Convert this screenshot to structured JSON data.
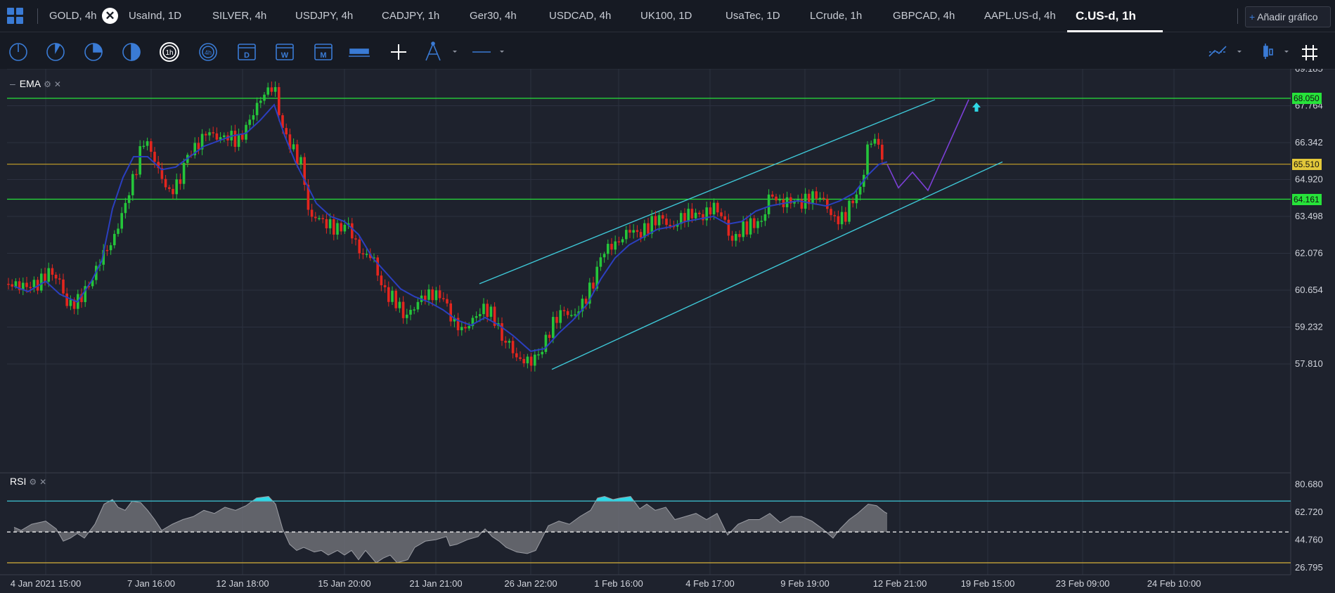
{
  "tabs": [
    "GOLD, 4h",
    "UsaInd, 1D",
    "SILVER, 4h",
    "USDJPY, 4h",
    "CADJPY, 1h",
    "Ger30, 4h",
    "USDCAD, 4h",
    "UK100, 1D",
    "UsaTec, 1D",
    "LCrude, 1h",
    "GBPCAD, 4h",
    "AAPL.US-d, 4h",
    "C.US-d, 1h"
  ],
  "active_tab": "C.US-d, 1h",
  "add_chart_label": "Añadir gráfico",
  "toolbar": {
    "timeframe_icons": [
      "1m",
      "5m",
      "15m",
      "30m",
      "1h",
      "4h",
      "D",
      "W",
      "M"
    ],
    "tool_icons": [
      "bar-width-icon",
      "crosshair-icon",
      "drawing-tool-icon",
      "line-tool-icon",
      "indicators-icon",
      "chart-type-icon",
      "grid-layout-icon"
    ]
  },
  "main_pane": {
    "indicator_label": "EMA",
    "price_ticks": [
      "69.185",
      "67.764",
      "66.342",
      "64.920",
      "63.498",
      "62.076",
      "60.654",
      "59.232",
      "57.810"
    ],
    "level_tags": [
      {
        "value": "68.050",
        "color": "#27e33a"
      },
      {
        "value": "65.510",
        "color": "#e3c83a"
      },
      {
        "value": "64.161",
        "color": "#27e33a"
      }
    ]
  },
  "rsi_pane": {
    "indicator_label": "RSI",
    "ticks": [
      "80.680",
      "62.720",
      "44.760",
      "26.795"
    ]
  },
  "time_axis": [
    "4 Jan 2021 15:00",
    "7 Jan 16:00",
    "12 Jan 18:00",
    "15 Jan 20:00",
    "21 Jan 21:00",
    "26 Jan 22:00",
    "1 Feb 16:00",
    "4 Feb 17:00",
    "9 Feb 19:00",
    "12 Feb 21:00",
    "19 Feb 15:00",
    "23 Feb 09:00",
    "24 Feb 10:00"
  ],
  "chart_data": {
    "type": "candlestick",
    "price_ylim": [
      57.0,
      69.7
    ],
    "close_path": [
      [
        0,
        60.9
      ],
      [
        25,
        60.8
      ],
      [
        45,
        60.9
      ],
      [
        60,
        61.4
      ],
      [
        75,
        61.0
      ],
      [
        85,
        60.1
      ],
      [
        100,
        60.2
      ],
      [
        120,
        61.0
      ],
      [
        135,
        62.0
      ],
      [
        150,
        62.5
      ],
      [
        165,
        63.7
      ],
      [
        180,
        65.0
      ],
      [
        195,
        66.5
      ],
      [
        205,
        66.0
      ],
      [
        215,
        65.3
      ],
      [
        230,
        64.4
      ],
      [
        245,
        64.8
      ],
      [
        255,
        65.8
      ],
      [
        270,
        66.2
      ],
      [
        285,
        66.8
      ],
      [
        300,
        66.5
      ],
      [
        315,
        66.6
      ],
      [
        330,
        66.4
      ],
      [
        345,
        67.2
      ],
      [
        360,
        68.0
      ],
      [
        375,
        68.5
      ],
      [
        382,
        68.3
      ],
      [
        390,
        67.0
      ],
      [
        400,
        66.4
      ],
      [
        410,
        65.9
      ],
      [
        420,
        65.5
      ],
      [
        430,
        63.4
      ],
      [
        440,
        63.5
      ],
      [
        455,
        63.2
      ],
      [
        470,
        63.0
      ],
      [
        485,
        63.2
      ],
      [
        495,
        62.5
      ],
      [
        505,
        62.0
      ],
      [
        520,
        62.0
      ],
      [
        530,
        61.0
      ],
      [
        540,
        60.5
      ],
      [
        555,
        60.2
      ],
      [
        565,
        59.6
      ],
      [
        580,
        60.0
      ],
      [
        590,
        60.4
      ],
      [
        605,
        60.5
      ],
      [
        620,
        60.4
      ],
      [
        635,
        59.4
      ],
      [
        650,
        59.1
      ],
      [
        665,
        59.6
      ],
      [
        680,
        60.0
      ],
      [
        695,
        59.5
      ],
      [
        705,
        58.7
      ],
      [
        715,
        58.6
      ],
      [
        725,
        58.0
      ],
      [
        745,
        57.9
      ],
      [
        760,
        58.3
      ],
      [
        775,
        59.3
      ],
      [
        790,
        59.9
      ],
      [
        805,
        59.6
      ],
      [
        820,
        60.2
      ],
      [
        835,
        61.0
      ],
      [
        845,
        62.0
      ],
      [
        855,
        62.3
      ],
      [
        870,
        62.5
      ],
      [
        885,
        63.0
      ],
      [
        900,
        62.8
      ],
      [
        915,
        63.2
      ],
      [
        930,
        63.5
      ],
      [
        945,
        63.0
      ],
      [
        960,
        63.5
      ],
      [
        975,
        63.6
      ],
      [
        990,
        63.5
      ],
      [
        1005,
        63.9
      ],
      [
        1020,
        63.4
      ],
      [
        1030,
        62.5
      ],
      [
        1045,
        63.0
      ],
      [
        1060,
        63.2
      ],
      [
        1075,
        63.3
      ],
      [
        1085,
        64.4
      ],
      [
        1100,
        64.0
      ],
      [
        1115,
        64.1
      ],
      [
        1130,
        64.0
      ],
      [
        1145,
        64.3
      ],
      [
        1160,
        64.2
      ],
      [
        1175,
        63.4
      ],
      [
        1190,
        63.4
      ],
      [
        1200,
        64.0
      ],
      [
        1215,
        64.6
      ],
      [
        1225,
        66.3
      ],
      [
        1235,
        66.5
      ],
      [
        1245,
        65.8
      ],
      [
        1252,
        65.5
      ]
    ],
    "ema_path": [
      [
        10,
        60.8
      ],
      [
        30,
        60.6
      ],
      [
        55,
        61.0
      ],
      [
        75,
        60.5
      ],
      [
        100,
        60.2
      ],
      [
        120,
        61.0
      ],
      [
        135,
        61.8
      ],
      [
        150,
        63.8
      ],
      [
        165,
        65.0
      ],
      [
        180,
        65.8
      ],
      [
        200,
        65.8
      ],
      [
        220,
        65.3
      ],
      [
        240,
        65.4
      ],
      [
        260,
        65.8
      ],
      [
        280,
        66.2
      ],
      [
        300,
        66.4
      ],
      [
        320,
        66.6
      ],
      [
        340,
        66.7
      ],
      [
        360,
        67.2
      ],
      [
        380,
        67.8
      ],
      [
        395,
        66.6
      ],
      [
        410,
        65.6
      ],
      [
        425,
        64.8
      ],
      [
        440,
        64.0
      ],
      [
        460,
        63.5
      ],
      [
        480,
        63.3
      ],
      [
        500,
        62.8
      ],
      [
        520,
        61.9
      ],
      [
        540,
        61.3
      ],
      [
        560,
        60.7
      ],
      [
        580,
        60.4
      ],
      [
        600,
        60.2
      ],
      [
        620,
        59.9
      ],
      [
        640,
        59.5
      ],
      [
        660,
        59.3
      ],
      [
        680,
        59.6
      ],
      [
        700,
        59.3
      ],
      [
        720,
        58.9
      ],
      [
        745,
        58.3
      ],
      [
        765,
        58.4
      ],
      [
        785,
        59.0
      ],
      [
        805,
        59.5
      ],
      [
        825,
        60.1
      ],
      [
        845,
        61.1
      ],
      [
        865,
        61.9
      ],
      [
        885,
        62.4
      ],
      [
        905,
        62.7
      ],
      [
        925,
        63.0
      ],
      [
        945,
        63.1
      ],
      [
        965,
        63.3
      ],
      [
        985,
        63.4
      ],
      [
        1005,
        63.5
      ],
      [
        1025,
        63.2
      ],
      [
        1045,
        63.3
      ],
      [
        1065,
        63.7
      ],
      [
        1085,
        63.9
      ],
      [
        1105,
        64.0
      ],
      [
        1125,
        64.1
      ],
      [
        1145,
        64.0
      ],
      [
        1165,
        63.9
      ],
      [
        1185,
        64.1
      ],
      [
        1205,
        64.4
      ],
      [
        1225,
        65.1
      ],
      [
        1240,
        65.5
      ],
      [
        1252,
        65.6
      ]
    ],
    "forecast_path": [
      [
        1252,
        65.5
      ],
      [
        1268,
        64.6
      ],
      [
        1288,
        65.2
      ],
      [
        1310,
        64.5
      ],
      [
        1335,
        66.0
      ],
      [
        1368,
        68.0
      ]
    ],
    "channel_upper": [
      [
        672,
        60.9
      ],
      [
        1320,
        68.0
      ]
    ],
    "channel_lower": [
      [
        775,
        57.6
      ],
      [
        1416,
        65.6
      ]
    ],
    "horizontal_levels": [
      {
        "value": 68.05,
        "color": "#27e33a"
      },
      {
        "value": 65.51,
        "color": "#c9a227"
      },
      {
        "value": 64.161,
        "color": "#27e33a"
      }
    ],
    "forecast_target_marker": {
      "x": 1379,
      "value": 67.7
    },
    "rsi": {
      "ylim": [
        20,
        86
      ],
      "levels": {
        "overbought": 70,
        "mid": 50,
        "oversold": 30
      },
      "path": [
        [
          10,
          53
        ],
        [
          20,
          51
        ],
        [
          35,
          55
        ],
        [
          55,
          57
        ],
        [
          70,
          52
        ],
        [
          80,
          44
        ],
        [
          90,
          46
        ],
        [
          100,
          49
        ],
        [
          110,
          46
        ],
        [
          125,
          55
        ],
        [
          138,
          68
        ],
        [
          150,
          71
        ],
        [
          158,
          66
        ],
        [
          168,
          64
        ],
        [
          178,
          70
        ],
        [
          190,
          69
        ],
        [
          200,
          64
        ],
        [
          210,
          58
        ],
        [
          220,
          51
        ],
        [
          235,
          55
        ],
        [
          250,
          58
        ],
        [
          265,
          60
        ],
        [
          280,
          64
        ],
        [
          295,
          62
        ],
        [
          310,
          66
        ],
        [
          325,
          64
        ],
        [
          340,
          67
        ],
        [
          355,
          72
        ],
        [
          372,
          73
        ],
        [
          382,
          68
        ],
        [
          392,
          52
        ],
        [
          402,
          42
        ],
        [
          412,
          38
        ],
        [
          422,
          40
        ],
        [
          437,
          37
        ],
        [
          447,
          38
        ],
        [
          457,
          35
        ],
        [
          470,
          38
        ],
        [
          480,
          35
        ],
        [
          490,
          38
        ],
        [
          500,
          32
        ],
        [
          510,
          38
        ],
        [
          525,
          30
        ],
        [
          535,
          33
        ],
        [
          545,
          35
        ],
        [
          555,
          30
        ],
        [
          570,
          32
        ],
        [
          580,
          40
        ],
        [
          595,
          44
        ],
        [
          610,
          45
        ],
        [
          625,
          47
        ],
        [
          630,
          41
        ],
        [
          640,
          42
        ],
        [
          655,
          45
        ],
        [
          670,
          47
        ],
        [
          680,
          52
        ],
        [
          690,
          47
        ],
        [
          700,
          44
        ],
        [
          710,
          40
        ],
        [
          725,
          37
        ],
        [
          740,
          36
        ],
        [
          752,
          38
        ],
        [
          760,
          45
        ],
        [
          770,
          54
        ],
        [
          785,
          57
        ],
        [
          800,
          55
        ],
        [
          815,
          60
        ],
        [
          830,
          64
        ],
        [
          840,
          72
        ],
        [
          850,
          73
        ],
        [
          862,
          71
        ],
        [
          872,
          72
        ],
        [
          887,
          73
        ],
        [
          900,
          65
        ],
        [
          910,
          68
        ],
        [
          922,
          64
        ],
        [
          937,
          66
        ],
        [
          950,
          58
        ],
        [
          965,
          60
        ],
        [
          980,
          62
        ],
        [
          995,
          58
        ],
        [
          1010,
          62
        ],
        [
          1025,
          48
        ],
        [
          1040,
          55
        ],
        [
          1055,
          58
        ],
        [
          1070,
          58
        ],
        [
          1085,
          62
        ],
        [
          1100,
          56
        ],
        [
          1115,
          60
        ],
        [
          1130,
          60
        ],
        [
          1145,
          57
        ],
        [
          1160,
          52
        ],
        [
          1175,
          46
        ],
        [
          1185,
          52
        ],
        [
          1198,
          58
        ],
        [
          1210,
          62
        ],
        [
          1225,
          68
        ],
        [
          1237,
          67
        ],
        [
          1248,
          63
        ],
        [
          1252,
          62
        ]
      ]
    }
  }
}
